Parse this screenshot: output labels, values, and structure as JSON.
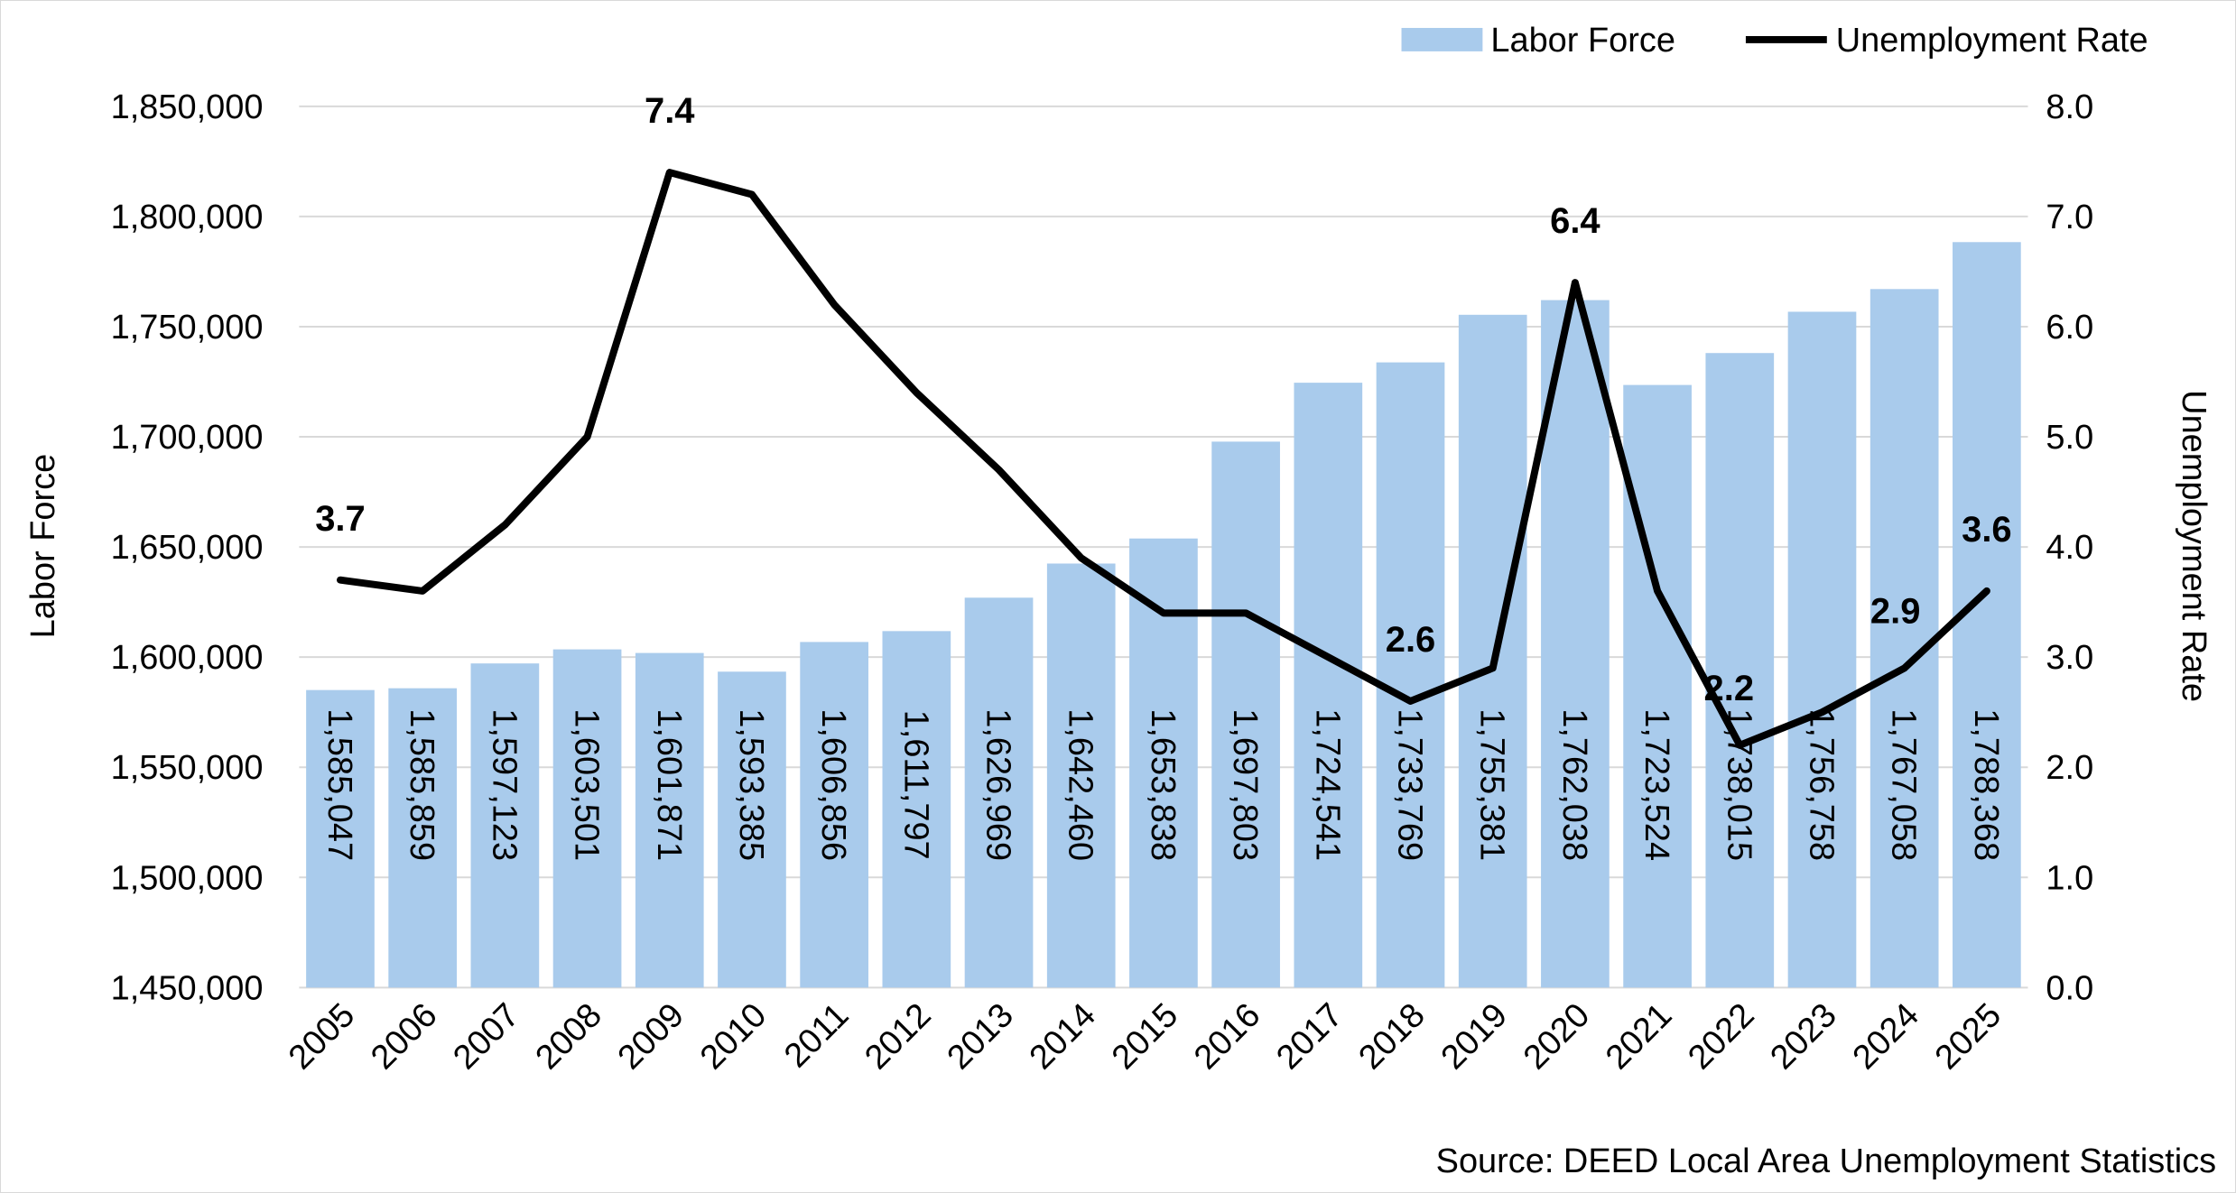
{
  "chart_data": {
    "type": "bar",
    "categories": [
      "2005",
      "2006",
      "2007",
      "2008",
      "2009",
      "2010",
      "2011",
      "2012",
      "2013",
      "2014",
      "2015",
      "2016",
      "2017",
      "2018",
      "2019",
      "2020",
      "2021",
      "2022",
      "2023",
      "2024",
      "2025"
    ],
    "series": [
      {
        "name": "Labor Force",
        "type": "bar",
        "axis": "left",
        "color": "#a9cbec",
        "values": [
          1585047,
          1585859,
          1597123,
          1603501,
          1601871,
          1593385,
          1606856,
          1611797,
          1626969,
          1642460,
          1653838,
          1697803,
          1724541,
          1733769,
          1755381,
          1762038,
          1723524,
          1738015,
          1756758,
          1767058,
          1788368
        ],
        "value_labels": [
          "1,585,047",
          "1,585,859",
          "1,597,123",
          "1,603,501",
          "1,601,871",
          "1,593,385",
          "1,606,856",
          "1,611,797",
          "1,626,969",
          "1,642,460",
          "1,653,838",
          "1,697,803",
          "1,724,541",
          "1,733,769",
          "1,755,381",
          "1,762,038",
          "1,723,524",
          "1,738,015",
          "1,756,758",
          "1,767,058",
          "1,788,368"
        ]
      },
      {
        "name": "Unemployment Rate",
        "type": "line",
        "axis": "right",
        "color": "#000000",
        "values": [
          3.7,
          3.6,
          4.2,
          5.0,
          7.4,
          7.2,
          6.2,
          5.4,
          4.7,
          3.9,
          3.4,
          3.4,
          3.0,
          2.6,
          2.9,
          6.4,
          3.6,
          2.2,
          2.5,
          2.9,
          3.6
        ],
        "labeled_points": [
          {
            "index": 0,
            "label": "3.7"
          },
          {
            "index": 4,
            "label": "7.4"
          },
          {
            "index": 13,
            "label": "2.6"
          },
          {
            "index": 15,
            "label": "6.4"
          },
          {
            "index": 17,
            "label": "2.2"
          },
          {
            "index": 19,
            "label": "2.9"
          },
          {
            "index": 20,
            "label": "3.6"
          }
        ]
      }
    ],
    "y_left": {
      "label": "Labor Force",
      "ylim": [
        1450000,
        1850000
      ],
      "ticks": [
        1450000,
        1500000,
        1550000,
        1600000,
        1650000,
        1700000,
        1750000,
        1800000,
        1850000
      ],
      "tick_labels": [
        "1,450,000",
        "1,500,000",
        "1,550,000",
        "1,600,000",
        "1,650,000",
        "1,700,000",
        "1,750,000",
        "1,800,000",
        "1,850,000"
      ]
    },
    "y_right": {
      "label": "Unemployment Rate",
      "ylim": [
        0,
        8
      ],
      "ticks": [
        0,
        1,
        2,
        3,
        4,
        5,
        6,
        7,
        8
      ],
      "tick_labels": [
        "0.0",
        "1.0",
        "2.0",
        "3.0",
        "4.0",
        "5.0",
        "6.0",
        "7.0",
        "8.0"
      ]
    },
    "grid": true,
    "legend_position": "top-right",
    "source": "Source: DEED Local Area Unemployment Statistics"
  }
}
